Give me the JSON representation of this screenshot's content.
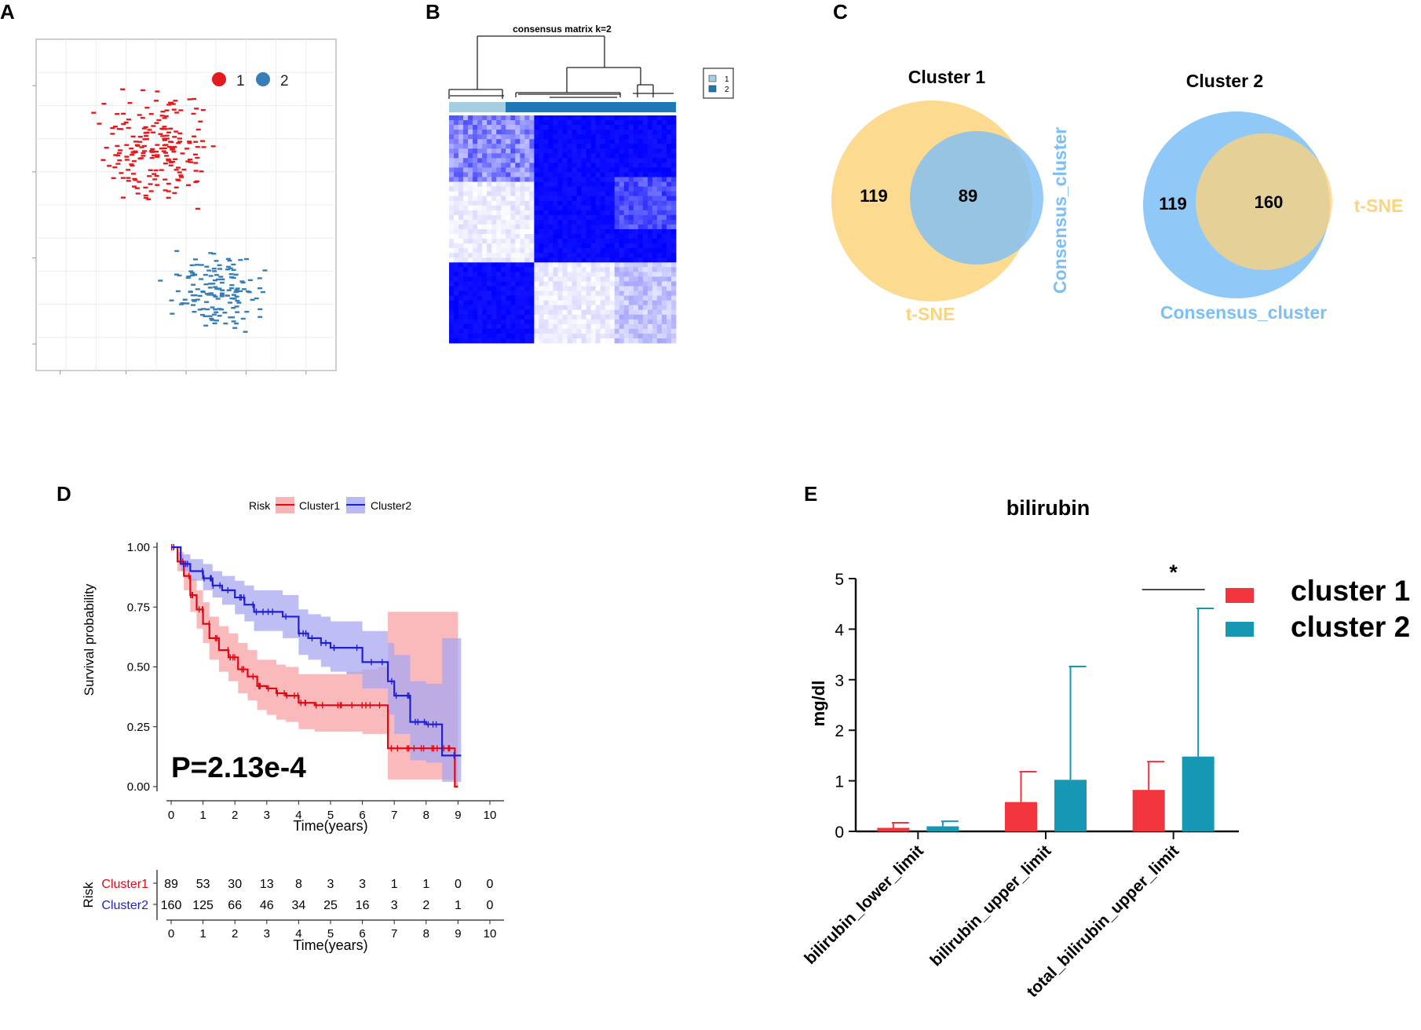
{
  "colors": {
    "red": "#e41a1c",
    "blue": "#377eb8",
    "cluster1": "#f2353d",
    "cluster2": "#1697b4",
    "venn_yellow": "#fcd47c",
    "venn_blue": "#7cbef6",
    "km_red": "#e30613",
    "km_blue": "#1f1fd6"
  },
  "panels": {
    "a": "A",
    "b": "B",
    "c": "C",
    "d": "D",
    "e": "E"
  },
  "chart_data": [
    {
      "id": "tsne",
      "type": "scatter",
      "legend": [
        {
          "label": "1",
          "color": "#e41a1c"
        },
        {
          "label": "2",
          "color": "#377eb8"
        }
      ],
      "xlim": [
        0,
        10
      ],
      "ylim": [
        0,
        10
      ],
      "series": [
        {
          "name": "1",
          "n": 208,
          "center": [
            4.0,
            6.7
          ],
          "spread": [
            1.9,
            2.0
          ]
        },
        {
          "name": "2",
          "n": 149,
          "center": [
            6.0,
            2.5
          ],
          "spread": [
            1.9,
            1.3
          ]
        }
      ]
    },
    {
      "id": "consensus",
      "type": "heatmap",
      "title": "consensus matrix k=2",
      "legend": [
        "1",
        "2"
      ],
      "clusters": [
        {
          "label": "1",
          "size": 89
        },
        {
          "label": "2",
          "size": 160
        }
      ],
      "note": "blocks of high consensus along the diagonal"
    },
    {
      "id": "venn",
      "type": "venn",
      "diagrams": [
        {
          "title": "Cluster 1",
          "only": 119,
          "overlap": 89,
          "set_a": "t-SNE",
          "set_b": "Consensus_cluster"
        },
        {
          "title": "Cluster 2",
          "only": 119,
          "overlap": 160,
          "set_a": "Consensus_cluster",
          "set_b": "t-SNE"
        }
      ]
    },
    {
      "id": "km",
      "type": "line",
      "legend_title": "Risk",
      "xlabel": "Time(years)",
      "ylabel": "Survival probability",
      "xlim": [
        0,
        10
      ],
      "ylim": [
        0,
        1
      ],
      "xticks": [
        0,
        1,
        2,
        3,
        4,
        5,
        6,
        7,
        8,
        9,
        10
      ],
      "yticks": [
        "0.00",
        "0.25",
        "0.50",
        "0.75",
        "1.00"
      ],
      "pvalue": "P=2.13e-4",
      "series": [
        {
          "name": "Cluster1",
          "color": "#e30613",
          "x": [
            0,
            0.2,
            0.4,
            0.6,
            0.8,
            1.0,
            1.2,
            1.5,
            1.8,
            2.1,
            2.4,
            2.7,
            3.0,
            3.3,
            3.6,
            4.0,
            4.5,
            5.0,
            5.5,
            6.0,
            6.5,
            6.8,
            7.0,
            7.5,
            8.0,
            8.5,
            8.9
          ],
          "y": [
            1.0,
            0.94,
            0.88,
            0.8,
            0.74,
            0.68,
            0.62,
            0.57,
            0.54,
            0.49,
            0.46,
            0.42,
            0.41,
            0.39,
            0.38,
            0.35,
            0.34,
            0.34,
            0.34,
            0.34,
            0.34,
            0.16,
            0.16,
            0.16,
            0.16,
            0.16,
            0.0
          ],
          "lower": [
            1.0,
            0.9,
            0.82,
            0.73,
            0.66,
            0.6,
            0.53,
            0.48,
            0.44,
            0.39,
            0.36,
            0.32,
            0.3,
            0.28,
            0.27,
            0.24,
            0.23,
            0.23,
            0.23,
            0.22,
            0.22,
            0.03,
            0.03,
            0.03,
            0.03,
            0.03,
            0.0
          ],
          "upper": [
            1.0,
            0.98,
            0.94,
            0.87,
            0.82,
            0.77,
            0.71,
            0.67,
            0.64,
            0.6,
            0.57,
            0.53,
            0.53,
            0.51,
            0.5,
            0.47,
            0.47,
            0.47,
            0.48,
            0.49,
            0.5,
            0.73,
            0.73,
            0.73,
            0.73,
            0.73,
            0.73
          ]
        },
        {
          "name": "Cluster2",
          "color": "#1f1fd6",
          "x": [
            0,
            0.3,
            0.6,
            1.0,
            1.3,
            1.6,
            2.0,
            2.3,
            2.6,
            3.0,
            3.5,
            4.0,
            4.3,
            4.7,
            5.0,
            5.5,
            6.0,
            6.5,
            6.8,
            7.0,
            7.5,
            8.0,
            8.5,
            9.0
          ],
          "y": [
            1.0,
            0.93,
            0.9,
            0.87,
            0.84,
            0.82,
            0.79,
            0.76,
            0.73,
            0.73,
            0.71,
            0.64,
            0.62,
            0.6,
            0.58,
            0.58,
            0.52,
            0.52,
            0.44,
            0.38,
            0.27,
            0.26,
            0.13,
            0.13
          ],
          "lower": [
            1.0,
            0.9,
            0.86,
            0.82,
            0.79,
            0.76,
            0.72,
            0.69,
            0.65,
            0.65,
            0.62,
            0.55,
            0.53,
            0.5,
            0.48,
            0.47,
            0.41,
            0.41,
            0.3,
            0.22,
            0.11,
            0.1,
            0.02,
            0.02
          ],
          "upper": [
            1.0,
            0.97,
            0.95,
            0.93,
            0.9,
            0.88,
            0.86,
            0.84,
            0.82,
            0.82,
            0.8,
            0.74,
            0.72,
            0.71,
            0.69,
            0.69,
            0.65,
            0.65,
            0.6,
            0.55,
            0.44,
            0.43,
            0.62,
            0.62
          ]
        }
      ],
      "risk_table": {
        "title": "Risk",
        "rows": [
          {
            "name": "Cluster1",
            "values": [
              "89",
              "53",
              "30",
              "13",
              "8",
              "3",
              "3",
              "1",
              "1",
              "0",
              "0"
            ]
          },
          {
            "name": "Cluster2",
            "values": [
              "160",
              "125",
              "66",
              "46",
              "34",
              "25",
              "16",
              "3",
              "2",
              "1",
              "0"
            ]
          }
        ],
        "xlabel": "Time(years)"
      }
    },
    {
      "id": "bilirubin",
      "type": "bar",
      "title": "bilirubin",
      "ylabel": "mg/dl",
      "ylim": [
        0,
        5
      ],
      "yticks": [
        "0",
        "1",
        "2",
        "3",
        "4",
        "5"
      ],
      "categories": [
        "bilirubin_lower_limit",
        "bilirubin_upper_limit",
        "total_bilirubin_upper_limit"
      ],
      "series": [
        {
          "name": "cluster 1",
          "values": [
            0.07,
            0.58,
            0.82
          ],
          "error": [
            0.1,
            0.6,
            0.56
          ]
        },
        {
          "name": "cluster 2",
          "values": [
            0.1,
            1.02,
            1.48
          ],
          "error": [
            0.1,
            2.24,
            2.93
          ]
        }
      ],
      "significance": "*"
    }
  ]
}
